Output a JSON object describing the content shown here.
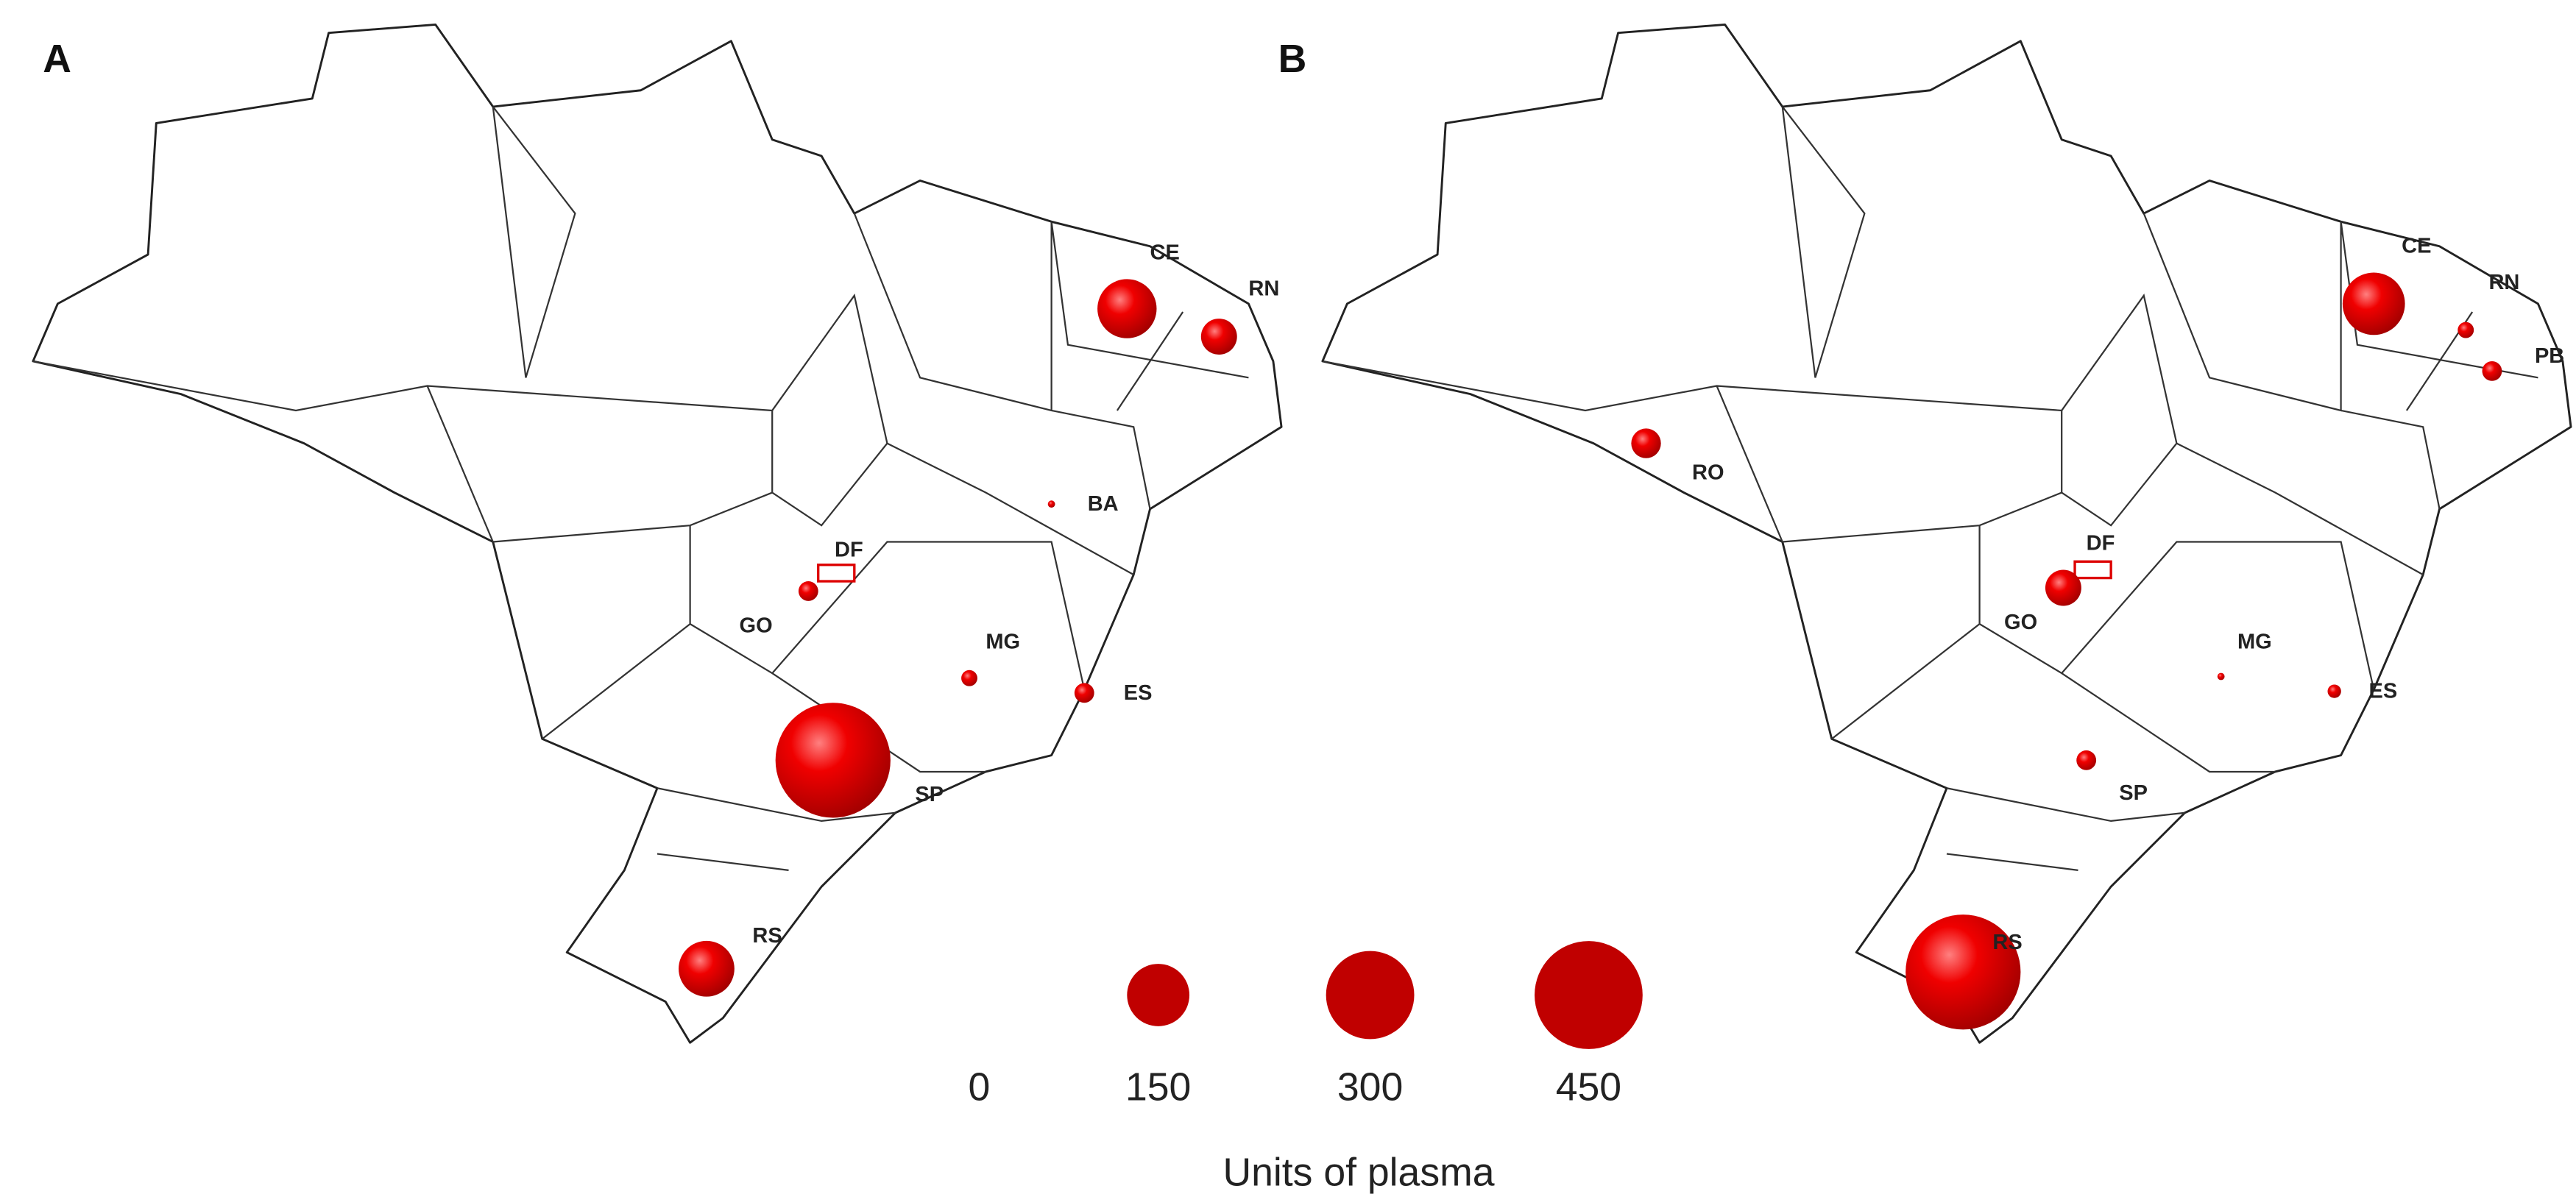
{
  "panels": [
    {
      "label": "A",
      "points": [
        {
          "state": "CE",
          "value": 135
        },
        {
          "state": "RN",
          "value": 50
        },
        {
          "state": "BA",
          "value": 2
        },
        {
          "state": "DF",
          "value": null
        },
        {
          "state": "GO",
          "value": 15
        },
        {
          "state": "MG",
          "value": 10
        },
        {
          "state": "ES",
          "value": 15
        },
        {
          "state": "SP",
          "value": 510
        },
        {
          "state": "RS",
          "value": 120
        }
      ]
    },
    {
      "label": "B",
      "points": [
        {
          "state": "CE",
          "value": 150
        },
        {
          "state": "RN",
          "value": 10
        },
        {
          "state": "PB",
          "value": 15
        },
        {
          "state": "RO",
          "value": 34
        },
        {
          "state": "DF",
          "value": null
        },
        {
          "state": "GO",
          "value": 50
        },
        {
          "state": "MG",
          "value": 2
        },
        {
          "state": "ES",
          "value": 7
        },
        {
          "state": "SP",
          "value": 15
        },
        {
          "state": "RS",
          "value": 510
        }
      ]
    }
  ],
  "legend": {
    "title": "Units of plasma",
    "values": [
      0,
      150,
      300,
      450
    ]
  }
}
